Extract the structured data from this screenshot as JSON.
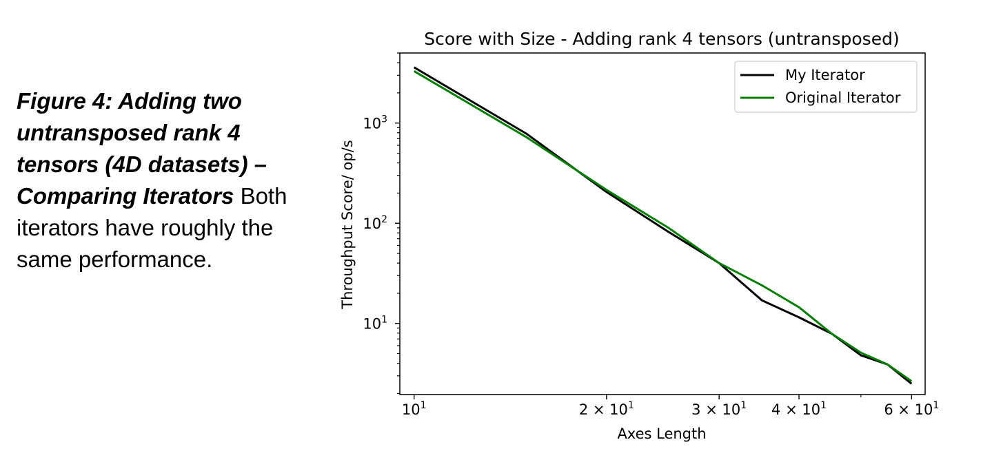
{
  "caption": {
    "heading": "Figure 4: Adding two untransposed rank 4 tensors (4D datasets) – Comparing Iterators",
    "body": "Both iterators have roughly the same performance."
  },
  "chart_data": {
    "type": "line",
    "title": "Score with Size - Adding rank 4 tensors (untransposed)",
    "xlabel": "Axes Length",
    "ylabel": "Throughput Score/ op/s",
    "xscale": "log",
    "yscale": "log",
    "xlim": [
      9.5,
      63
    ],
    "ylim": [
      1.95,
      5000
    ],
    "x_ticks": [
      {
        "value": 10,
        "base": "10",
        "exp": "1"
      },
      {
        "value": 20,
        "base": "2 × 10",
        "exp": "1"
      },
      {
        "value": 30,
        "base": "3 × 10",
        "exp": "1"
      },
      {
        "value": 40,
        "base": "4 × 10",
        "exp": "1"
      },
      {
        "value": 60,
        "base": "6 × 10",
        "exp": "1"
      }
    ],
    "y_ticks": [
      {
        "value": 10,
        "base": "10",
        "exp": "1"
      },
      {
        "value": 100,
        "base": "10",
        "exp": "2"
      },
      {
        "value": 1000,
        "base": "10",
        "exp": "3"
      }
    ],
    "x": [
      10,
      15,
      20,
      25,
      30,
      35,
      40,
      45,
      50,
      55,
      60
    ],
    "series": [
      {
        "name": "My Iterator",
        "color": "#000000",
        "values": [
          3600,
          780,
          205,
          82,
          40,
          17,
          11.5,
          7.9,
          4.8,
          3.9,
          2.5
        ]
      },
      {
        "name": "Original Iterator",
        "color": "#008000",
        "values": [
          3300,
          720,
          215,
          90,
          40,
          24,
          14.5,
          7.9,
          5.1,
          3.9,
          2.65
        ]
      }
    ],
    "legend": "top-right",
    "grid": false
  }
}
